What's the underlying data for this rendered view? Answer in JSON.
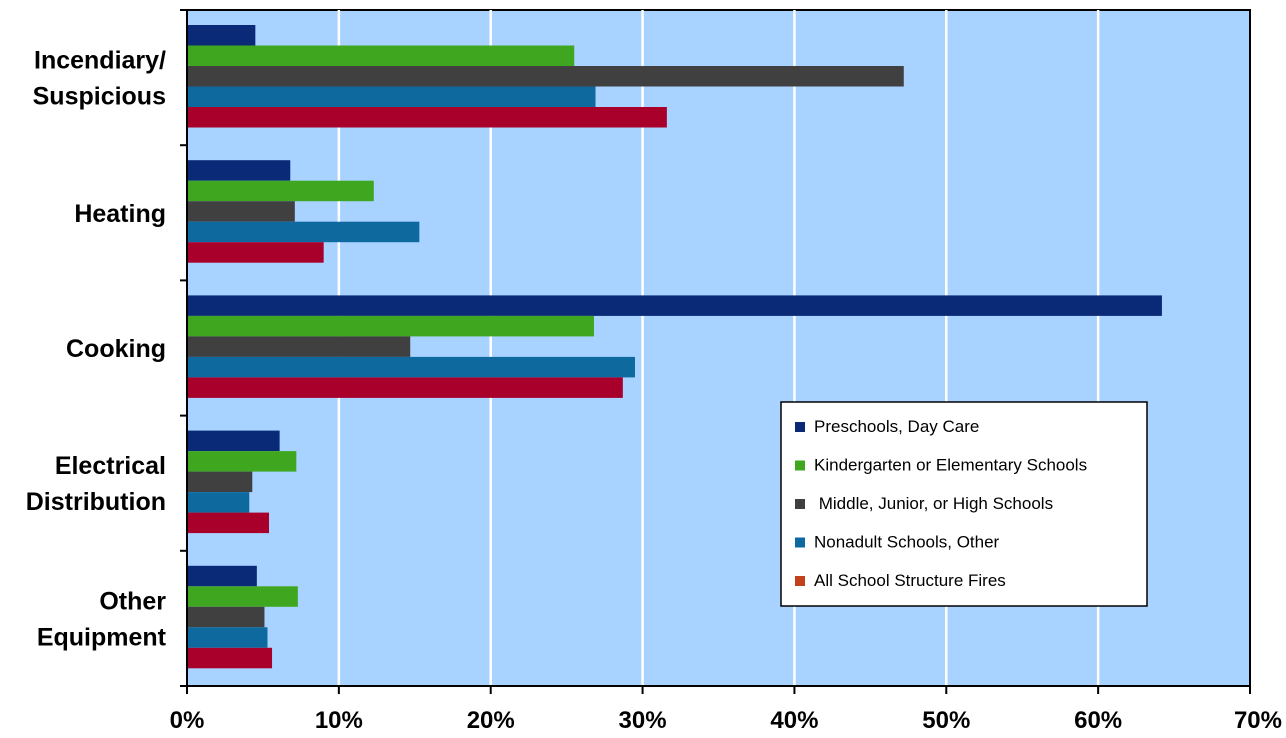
{
  "chart_data": {
    "type": "bar",
    "orientation": "horizontal",
    "categories": [
      [
        "Incendiary/",
        "Suspicious"
      ],
      [
        "Heating"
      ],
      [
        "Cooking"
      ],
      [
        "Electrical",
        "Distribution"
      ],
      [
        "Other",
        "Equipment"
      ]
    ],
    "series": [
      {
        "name": "Preschools, Day Care",
        "color": "#0a2a78",
        "values": [
          4.5,
          6.8,
          64.2,
          6.1,
          4.6
        ]
      },
      {
        "name": "Kindergarten or Elementary Schools",
        "color": "#3fa71f",
        "values": [
          25.5,
          12.3,
          26.8,
          7.2,
          7.3
        ]
      },
      {
        "name": " Middle, Junior, or High Schools",
        "color": "#404040",
        "values": [
          47.2,
          7.1,
          14.7,
          4.3,
          5.1
        ]
      },
      {
        "name": "Nonadult Schools, Other",
        "color": "#0e6a9e",
        "values": [
          26.9,
          15.3,
          29.5,
          4.1,
          5.3
        ]
      },
      {
        "name": "All School Structure Fires",
        "color": "#a8002b",
        "legend_color": "#c0411a",
        "values": [
          31.6,
          9.0,
          28.7,
          5.4,
          5.6
        ]
      }
    ],
    "xlim": [
      0,
      70
    ],
    "x_ticks": [
      "0%",
      "10%",
      "20%",
      "30%",
      "40%",
      "50%",
      "60%",
      "70%"
    ],
    "grid": true,
    "plot_background": "#a8d2ff",
    "legend_position": "right"
  }
}
